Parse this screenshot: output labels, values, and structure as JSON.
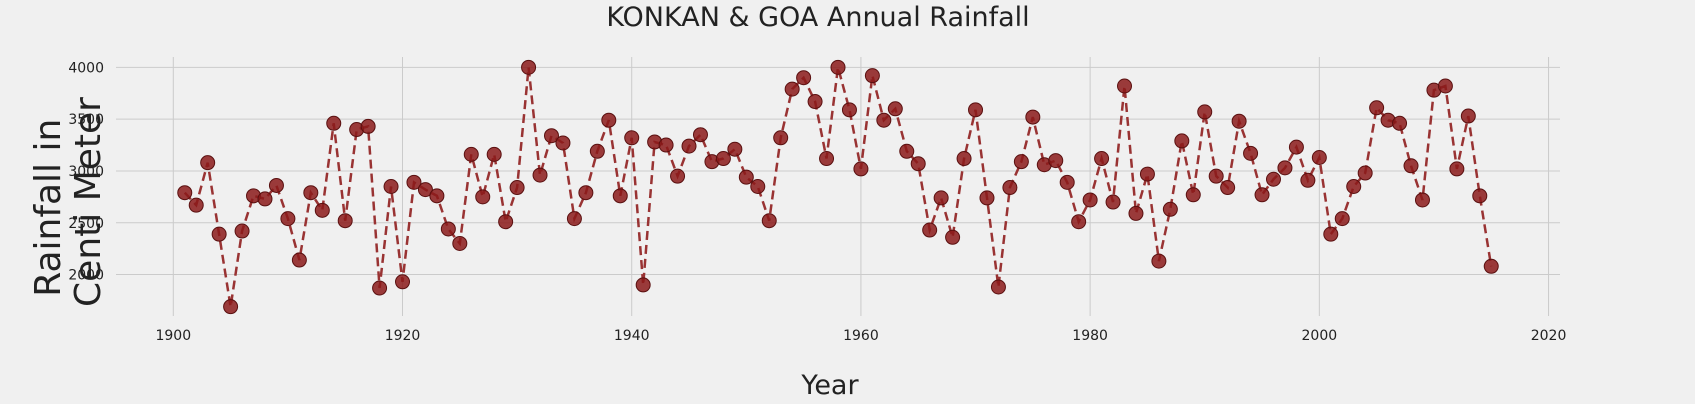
{
  "chart_data": {
    "type": "line",
    "title": "KONKAN & GOA Annual Rainfall",
    "xlabel": "Year",
    "ylabel_lines": [
      "Rainfall in",
      "Centi Meter"
    ],
    "xlim": [
      1895,
      2021
    ],
    "ylim": [
      1600,
      4100
    ],
    "xticks": [
      1900,
      1920,
      1940,
      1960,
      1980,
      2000,
      2020
    ],
    "yticks": [
      2000,
      2500,
      3000,
      3500,
      4000
    ],
    "grid": true,
    "colors": {
      "line": "#993333",
      "marker": "#8b1a1a",
      "background": "#f0f0f0",
      "grid": "#cbcbcb"
    },
    "series": [
      {
        "x": [
          1901,
          1902,
          1903,
          1904,
          1905,
          1906,
          1907,
          1908,
          1909,
          1910,
          1911,
          1912,
          1913,
          1914,
          1915,
          1916,
          1917,
          1918,
          1919,
          1920,
          1921,
          1922,
          1923,
          1924,
          1925,
          1926,
          1927,
          1928,
          1929,
          1930,
          1931,
          1932,
          1933,
          1934,
          1935,
          1936,
          1937,
          1938,
          1939,
          1940,
          1941,
          1942,
          1943,
          1944,
          1945,
          1946,
          1947,
          1948,
          1949,
          1950,
          1951,
          1952,
          1953,
          1954,
          1955,
          1956,
          1957,
          1958,
          1959,
          1960,
          1961,
          1962,
          1963,
          1964,
          1965,
          1966,
          1967,
          1968,
          1969,
          1970,
          1971,
          1972,
          1973,
          1974,
          1975,
          1976,
          1977,
          1978,
          1979,
          1980,
          1981,
          1982,
          1983,
          1984,
          1985,
          1986,
          1987,
          1988,
          1989,
          1990,
          1991,
          1992,
          1993,
          1994,
          1995,
          1996,
          1997,
          1998,
          1999,
          2000,
          2001,
          2002,
          2003,
          2004,
          2005,
          2006,
          2007,
          2008,
          2009,
          2010,
          2011,
          2012,
          2013,
          2014,
          2015
        ],
        "y": [
          2790,
          2670,
          3080,
          2390,
          1690,
          2420,
          2760,
          2730,
          2860,
          2540,
          2140,
          2790,
          2620,
          3460,
          2520,
          3400,
          3430,
          1870,
          2850,
          1930,
          2890,
          2820,
          2760,
          2440,
          2300,
          3160,
          2750,
          3160,
          2510,
          2840,
          4000,
          2960,
          3340,
          3270,
          2540,
          2790,
          3190,
          3490,
          2760,
          3320,
          1900,
          3280,
          3250,
          2950,
          3240,
          3350,
          3090,
          3120,
          3210,
          2940,
          2850,
          2520,
          3320,
          3790,
          3900,
          3670,
          3120,
          4000,
          3590,
          3020,
          3920,
          3490,
          3600,
          3190,
          3070,
          2430,
          2740,
          2360,
          3120,
          3590,
          2740,
          1880,
          2840,
          3090,
          3520,
          3060,
          3100,
          2890,
          2510,
          2720,
          3120,
          2700,
          3820,
          2590,
          2970,
          2130,
          2630,
          3290,
          2770,
          3570,
          2950,
          2840,
          3480,
          3170,
          2770,
          2920,
          3030,
          3230,
          2910,
          3130,
          2390,
          2540,
          2850,
          2980,
          3610,
          3490,
          3460,
          3050,
          2720,
          3780,
          3820,
          3020,
          3530,
          2760,
          2080
        ]
      }
    ]
  }
}
